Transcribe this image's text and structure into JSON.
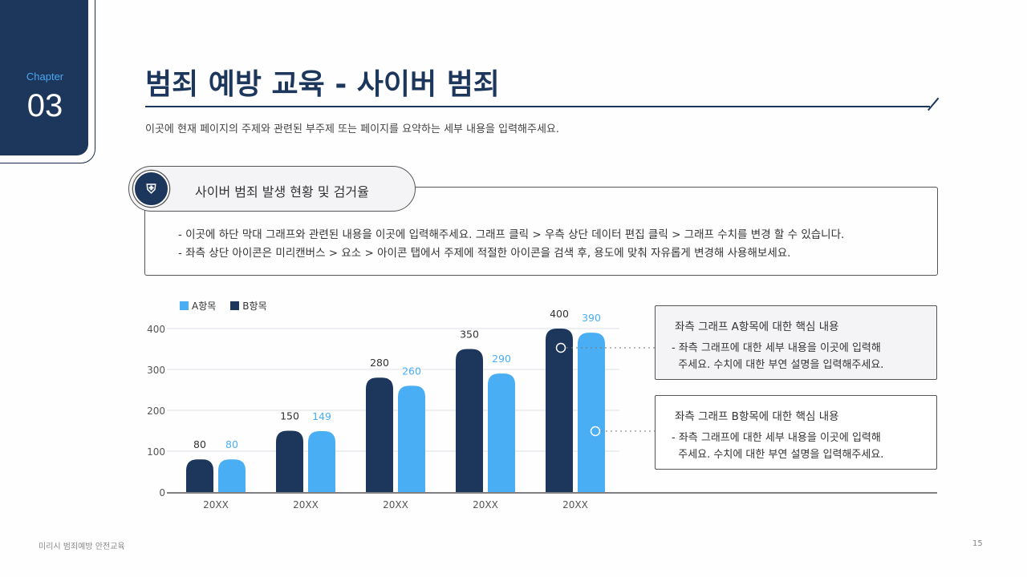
{
  "chapter": {
    "label": "Chapter",
    "number": "03"
  },
  "title": "범죄 예방 교육 - 사이버 범죄",
  "subtitle": "이곳에 현재 페이지의 주제와 관련된 부주제 또는 페이지를 요약하는 세부 내용을 입력해주세요.",
  "section": {
    "icon": "police-badge-icon",
    "heading": "사이버 범죄 발생 현황 및 검거율",
    "bullets": [
      "- 이곳에 하단 막대 그래프와 관련된 내용을 이곳에 입력해주세요. 그래프 클릭 > 우측 상단 데이터 편집 클릭 > 그래프 수치를 변경 할 수 있습니다.",
      "- 좌측 상단 아이콘은 미리캔버스 > 요소 > 아이콘 탭에서 주제에 적절한 아이콘을 검색 후, 용도에 맞춰 자유롭게 변경해 사용해보세요."
    ]
  },
  "cards": [
    {
      "heading": "좌측 그래프 A항목에 대한 핵심 내용",
      "lines": [
        "- 좌측 그래프에 대한 세부 내용을 이곳에 입력해",
        "  주세요. 수치에 대한 부연 설명을 입력해주세요."
      ]
    },
    {
      "heading": "좌측 그래프 B항목에 대한 핵심 내용",
      "lines": [
        "- 좌측 그래프에 대한 세부 내용을 이곳에 입력해",
        "  주세요. 수치에 대한 부연 설명을 입력해주세요."
      ]
    }
  ],
  "chart_data": {
    "type": "bar",
    "categories": [
      "20XX",
      "20XX",
      "20XX",
      "20XX",
      "20XX"
    ],
    "series": [
      {
        "name": "B항목",
        "color": "#1c365c",
        "values": [
          80,
          150,
          280,
          350,
          400
        ]
      },
      {
        "name": "A항목",
        "color": "#4aaef5",
        "values": [
          80,
          149,
          260,
          290,
          390
        ]
      }
    ],
    "legend": [
      "A항목",
      "B항목"
    ],
    "yticks": [
      0,
      100,
      200,
      300,
      400
    ],
    "ylim": [
      0,
      400
    ],
    "grid": true,
    "legend_position": "top-left"
  },
  "footer": {
    "text": "미리시 범죄예방 안전교육",
    "page": "15"
  }
}
